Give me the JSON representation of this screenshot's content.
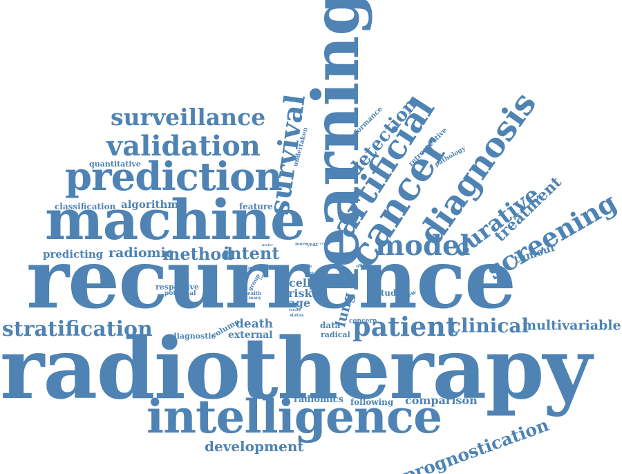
{
  "color": "#4e83b4",
  "words": [
    {
      "id": "radiotherapy",
      "text": "radiotherapy"
    },
    {
      "id": "recurrence",
      "text": "recurrence"
    },
    {
      "id": "learning",
      "text": "learning"
    },
    {
      "id": "machine",
      "text": "machine"
    },
    {
      "id": "intelligence",
      "text": "intelligence"
    },
    {
      "id": "prediction",
      "text": "prediction"
    },
    {
      "id": "cancer",
      "text": "cancer"
    },
    {
      "id": "artificial",
      "text": "artificial"
    },
    {
      "id": "diagnosis",
      "text": "diagnosis"
    },
    {
      "id": "screening",
      "text": "screening"
    },
    {
      "id": "curative",
      "text": "curative"
    },
    {
      "id": "validation",
      "text": "validation"
    },
    {
      "id": "surveillance",
      "text": "surveillance"
    },
    {
      "id": "survival",
      "text": "survival"
    },
    {
      "id": "model",
      "text": "model"
    },
    {
      "id": "patient",
      "text": "patient"
    },
    {
      "id": "clinical",
      "text": "clinical"
    },
    {
      "id": "stratification",
      "text": "stratification"
    },
    {
      "id": "prognostication",
      "text": "prognostication"
    },
    {
      "id": "multivariable",
      "text": "multivariable"
    },
    {
      "id": "treatment",
      "text": "treatment"
    },
    {
      "id": "detection",
      "text": "detection"
    },
    {
      "id": "method",
      "text": "method"
    },
    {
      "id": "intent",
      "text": "intent"
    },
    {
      "id": "development",
      "text": "development"
    },
    {
      "id": "comparison",
      "text": "comparison"
    },
    {
      "id": "tumour",
      "text": "tumour"
    },
    {
      "id": "lung",
      "text": "lung"
    },
    {
      "id": "predicting",
      "text": "predicting"
    },
    {
      "id": "radiomic",
      "text": "radiomic"
    },
    {
      "id": "algorithm",
      "text": "algorithm"
    },
    {
      "id": "classification",
      "text": "classification"
    },
    {
      "id": "quantitative",
      "text": "quantitative"
    },
    {
      "id": "feature",
      "text": "feature"
    },
    {
      "id": "death",
      "text": "death"
    },
    {
      "id": "external",
      "text": "external"
    },
    {
      "id": "diagnostic",
      "text": "diagnostic"
    },
    {
      "id": "volume",
      "text": "volume"
    },
    {
      "id": "radiomics",
      "text": "radiomics"
    },
    {
      "id": "following",
      "text": "following"
    },
    {
      "id": "cell",
      "text": "cell"
    },
    {
      "id": "risk",
      "text": "risk"
    },
    {
      "id": "stage",
      "text": "stage"
    },
    {
      "id": "study",
      "text": "study"
    },
    {
      "id": "data",
      "text": "data"
    },
    {
      "id": "radical",
      "text": "radical"
    },
    {
      "id": "test",
      "text": "test"
    },
    {
      "id": "concern",
      "text": "concern"
    },
    {
      "id": "respective",
      "text": "respective"
    },
    {
      "id": "potential",
      "text": "potential"
    },
    {
      "id": "performance",
      "text": "performance"
    },
    {
      "id": "retrospective",
      "text": "retrospective"
    },
    {
      "id": "pathology",
      "text": "pathology"
    },
    {
      "id": "undertaken",
      "text": "undertaken"
    },
    {
      "id": "overview",
      "text": "overview"
    },
    {
      "id": "analyse",
      "text": "analyse"
    },
    {
      "id": "group",
      "text": "group"
    },
    {
      "id": "health",
      "text": "health"
    },
    {
      "id": "many",
      "text": "many"
    },
    {
      "id": "gros",
      "text": "gros"
    },
    {
      "id": "more",
      "text": "more"
    },
    {
      "id": "year",
      "text": "year"
    },
    {
      "id": "cross",
      "text": "cross"
    },
    {
      "id": "meier",
      "text": "meier"
    },
    {
      "id": "role",
      "text": "role"
    },
    {
      "id": "future",
      "text": "future"
    },
    {
      "id": "status",
      "text": "status"
    },
    {
      "id": "free",
      "text": "free"
    },
    {
      "id": "also",
      "text": "also"
    },
    {
      "id": "real",
      "text": "real"
    }
  ]
}
